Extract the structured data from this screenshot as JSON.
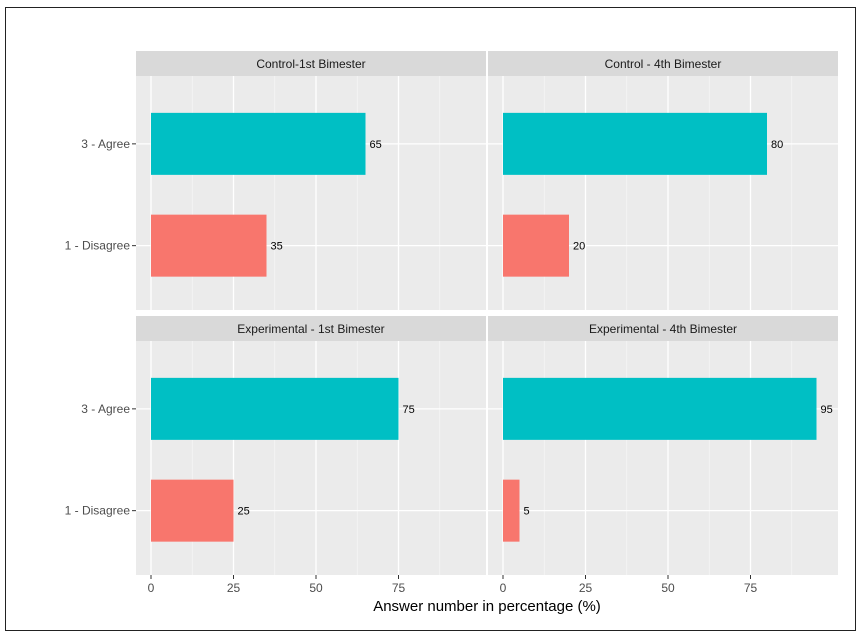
{
  "chart_data": {
    "type": "bar",
    "orientation": "horizontal",
    "facet_layout": "2x2",
    "xlabel": "Answer number in percentage (%)",
    "ylabel": "",
    "xlim": [
      0,
      100
    ],
    "x_ticks": [
      0,
      25,
      50,
      75
    ],
    "categories": [
      "3 - Agree",
      "1 - Disagree"
    ],
    "colors": {
      "3 - Agree": "#00BFC4",
      "1 - Disagree": "#F8766D"
    },
    "grid": true,
    "legend": "none",
    "panels": [
      {
        "title": "Control-1st Bimester",
        "values": [
          65,
          35
        ]
      },
      {
        "title": "Control - 4th Bimester",
        "values": [
          80,
          20
        ]
      },
      {
        "title": "Experimental - 1st Bimester",
        "values": [
          75,
          25
        ]
      },
      {
        "title": "Experimental - 4th Bimester",
        "values": [
          95,
          5
        ]
      }
    ]
  }
}
